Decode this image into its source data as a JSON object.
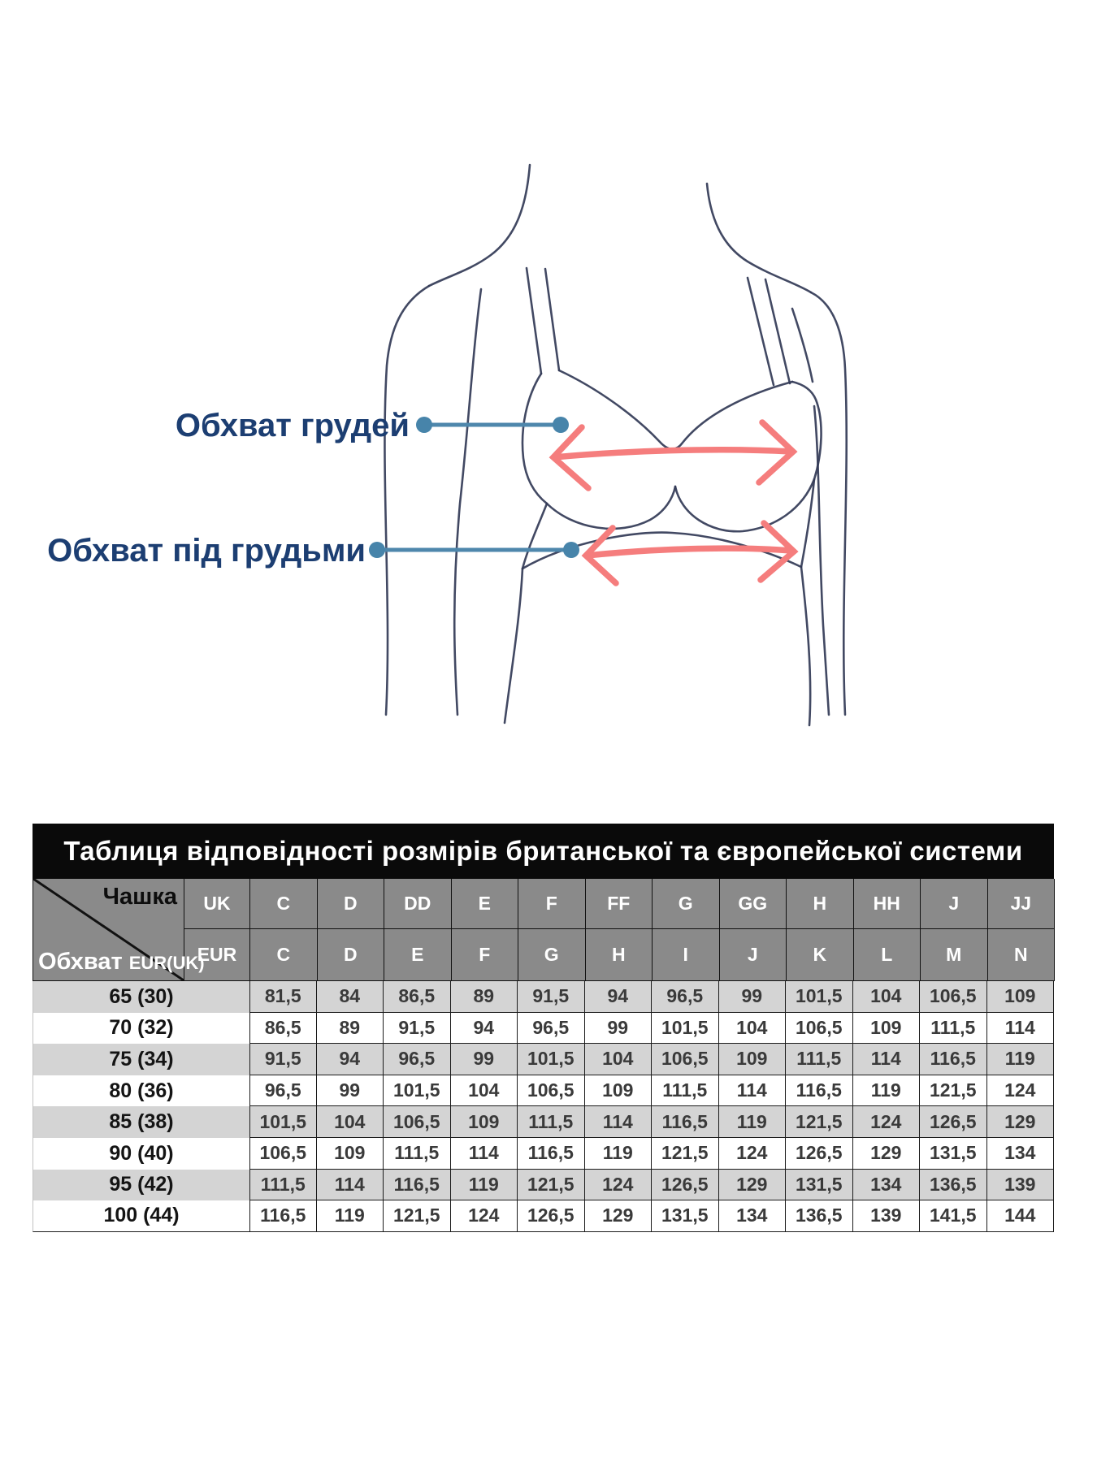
{
  "diagram": {
    "label_bust": "Обхват грудей",
    "label_underbust": "Обхват під грудьми",
    "colors": {
      "label_text": "#1c3e72",
      "connector_blue": "#4e87ac",
      "arrow_salmon": "#f57d7d",
      "figure_line": "#323a56"
    }
  },
  "table": {
    "title": "Таблиця відповідності розмірів британської та європейської системи",
    "corner": {
      "top_label": "Чашка",
      "bottom_label": "Обхват",
      "bottom_label_small": "EUR(UK)"
    },
    "cup_row_uk_label": "UK",
    "cup_row_eur_label": "EUR",
    "uk_cups": [
      "C",
      "D",
      "DD",
      "E",
      "F",
      "FF",
      "G",
      "GG",
      "H",
      "HH",
      "J",
      "JJ"
    ],
    "eur_cups": [
      "C",
      "D",
      "E",
      "F",
      "G",
      "H",
      "I",
      "J",
      "K",
      "L",
      "M",
      "N"
    ],
    "rows": [
      {
        "band": "65 (30)",
        "values": [
          "81,5",
          "84",
          "86,5",
          "89",
          "91,5",
          "94",
          "96,5",
          "99",
          "101,5",
          "104",
          "106,5",
          "109"
        ]
      },
      {
        "band": "70 (32)",
        "values": [
          "86,5",
          "89",
          "91,5",
          "94",
          "96,5",
          "99",
          "101,5",
          "104",
          "106,5",
          "109",
          "111,5",
          "114"
        ]
      },
      {
        "band": "75 (34)",
        "values": [
          "91,5",
          "94",
          "96,5",
          "99",
          "101,5",
          "104",
          "106,5",
          "109",
          "111,5",
          "114",
          "116,5",
          "119"
        ]
      },
      {
        "band": "80 (36)",
        "values": [
          "96,5",
          "99",
          "101,5",
          "104",
          "106,5",
          "109",
          "111,5",
          "114",
          "116,5",
          "119",
          "121,5",
          "124"
        ]
      },
      {
        "band": "85 (38)",
        "values": [
          "101,5",
          "104",
          "106,5",
          "109",
          "111,5",
          "114",
          "116,5",
          "119",
          "121,5",
          "124",
          "126,5",
          "129"
        ]
      },
      {
        "band": "90 (40)",
        "values": [
          "106,5",
          "109",
          "111,5",
          "114",
          "116,5",
          "119",
          "121,5",
          "124",
          "126,5",
          "129",
          "131,5",
          "134"
        ]
      },
      {
        "band": "95 (42)",
        "values": [
          "111,5",
          "114",
          "116,5",
          "119",
          "121,5",
          "124",
          "126,5",
          "129",
          "131,5",
          "134",
          "136,5",
          "139"
        ]
      },
      {
        "band": "100 (44)",
        "values": [
          "116,5",
          "119",
          "121,5",
          "124",
          "126,5",
          "129",
          "131,5",
          "134",
          "136,5",
          "139",
          "141,5",
          "144"
        ]
      }
    ],
    "colors": {
      "title_bg": "#0a0a0a",
      "title_text": "#ffffff",
      "header_bg": "#8a8a8a",
      "row_alt_bg": "#d4d4d4",
      "grid_border": "#1b1b1b"
    }
  }
}
